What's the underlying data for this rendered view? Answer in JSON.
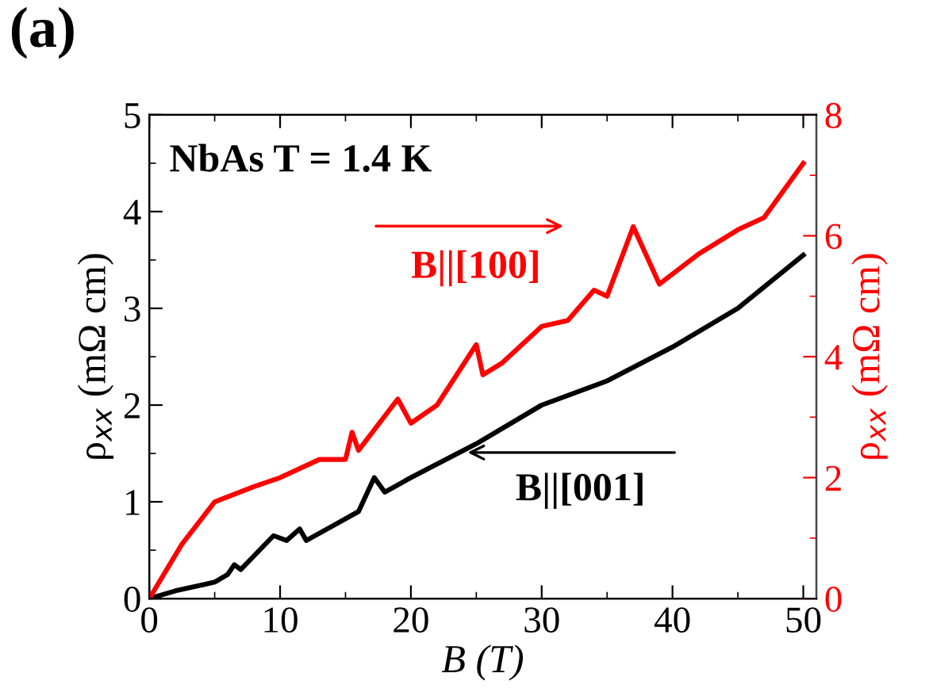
{
  "chart_data": {
    "type": "line",
    "title": "(a)",
    "xlabel": "B (T)",
    "ylabel": "ρ$_{xx}$ (mΩ cm)",
    "y2label": "ρ$_{xx}$ (mΩ cm)",
    "annotations": [
      "NbAs T = 1.4 K"
    ],
    "series": [
      {
        "name": "B||[001]",
        "color": "#000000",
        "x": [
          0,
          2,
          5,
          6,
          6.5,
          7,
          9.5,
          10.5,
          11.5,
          12,
          14,
          16,
          17.2,
          18,
          20,
          25,
          30,
          35,
          40,
          45,
          50
        ],
        "values": [
          0,
          0.08,
          0.17,
          0.25,
          0.35,
          0.3,
          0.65,
          0.6,
          0.72,
          0.6,
          0.75,
          0.9,
          1.25,
          1.1,
          1.25,
          1.6,
          2.0,
          2.25,
          2.6,
          3.0,
          3.55
        ]
      },
      {
        "name": "B||[100]",
        "color": "#ff0000",
        "axis": "y2",
        "x": [
          0,
          2.5,
          5,
          8,
          10,
          13,
          15,
          15.5,
          16,
          19,
          20,
          22,
          25,
          25.5,
          27,
          30,
          32,
          34,
          35,
          37,
          39,
          42,
          45,
          47,
          50
        ],
        "values": [
          0,
          0.9,
          1.6,
          1.85,
          2.0,
          2.3,
          2.3,
          2.75,
          2.45,
          3.3,
          2.9,
          3.2,
          4.2,
          3.7,
          3.9,
          4.5,
          4.6,
          5.1,
          5.0,
          6.15,
          5.2,
          5.7,
          6.1,
          6.3,
          7.2
        ]
      }
    ],
    "xlim": [
      0,
      51
    ],
    "xticks": [
      0,
      10,
      20,
      30,
      40,
      50
    ],
    "ylim": [
      0,
      5
    ],
    "yticks": [
      0,
      1,
      2,
      3,
      4,
      5
    ],
    "y2lim": [
      0,
      8
    ],
    "y2ticks": [
      0,
      2,
      4,
      6,
      8
    ],
    "grid": false,
    "legend": "center",
    "marker": "none",
    "line_style": "solid"
  }
}
